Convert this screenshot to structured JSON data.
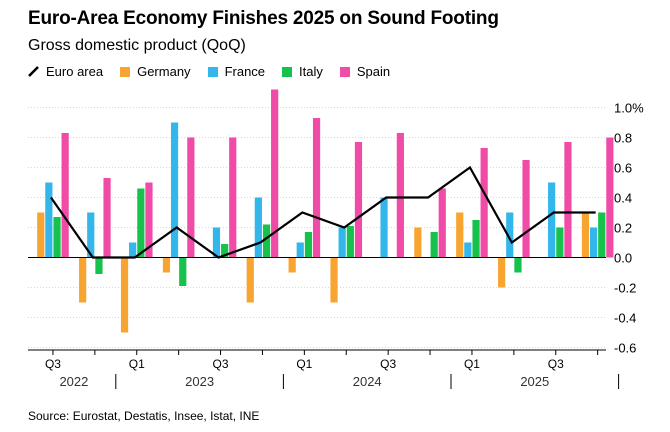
{
  "header": {
    "title": "Euro-Area Economy Finishes 2025 on Sound Footing",
    "subtitle": "Gross domestic product (QoQ)"
  },
  "source": "Source: Eurostat, Destatis, Insee, Istat, INE",
  "colors": {
    "euro_area": "#000000",
    "germany": "#f7a430",
    "france": "#33b6ea",
    "italy": "#16c14c",
    "spain": "#f04ba6"
  },
  "chart_data": {
    "type": "bar",
    "title": "Euro-Area Economy Finishes 2025 on Sound Footing",
    "subtitle": "Gross domestic product (QoQ)",
    "ylim": [
      -0.7,
      1.1
    ],
    "y_ticks": [
      1.0,
      0.8,
      0.6,
      0.4,
      0.2,
      0.0,
      -0.2,
      -0.4,
      -0.6
    ],
    "y_tick_labels": [
      "1.0%",
      "0.8",
      "0.6",
      "0.4",
      "0.2",
      "0.0",
      "-0.2",
      "-0.4",
      "-0.6"
    ],
    "categories": [
      "2022 Q3",
      "2022 Q4",
      "2023 Q1",
      "2023 Q2",
      "2023 Q3",
      "2023 Q4",
      "2024 Q1",
      "2024 Q2",
      "2024 Q3",
      "2024 Q4",
      "2025 Q1",
      "2025 Q2",
      "2025 Q3",
      "2025 Q4"
    ],
    "quarter_labels": [
      "Q3",
      "",
      "Q1",
      "",
      "Q3",
      "",
      "Q1",
      "",
      "Q3",
      "",
      "Q1",
      "",
      "Q3",
      ""
    ],
    "year_labels": [
      {
        "label": "2022",
        "start": 0,
        "end": 1
      },
      {
        "label": "2023",
        "start": 2,
        "end": 5
      },
      {
        "label": "2024",
        "start": 6,
        "end": 9
      },
      {
        "label": "2025",
        "start": 10,
        "end": 13
      }
    ],
    "series": [
      {
        "name": "Germany",
        "type": "bar",
        "values": [
          0.3,
          -0.3,
          -0.5,
          -0.1,
          0.0,
          -0.3,
          -0.1,
          -0.3,
          0.0,
          0.2,
          0.3,
          -0.2,
          0.0,
          0.3
        ]
      },
      {
        "name": "France",
        "type": "bar",
        "values": [
          0.5,
          0.3,
          0.1,
          0.9,
          0.2,
          0.4,
          0.1,
          0.2,
          0.4,
          0.0,
          0.1,
          0.3,
          0.5,
          0.2
        ]
      },
      {
        "name": "Italy",
        "type": "bar",
        "values": [
          0.27,
          -0.11,
          0.46,
          -0.19,
          0.09,
          0.22,
          0.17,
          0.21,
          0.0,
          0.17,
          0.25,
          -0.1,
          0.2,
          0.3
        ]
      },
      {
        "name": "Spain",
        "type": "bar",
        "values": [
          0.83,
          0.53,
          0.5,
          0.8,
          0.8,
          1.12,
          0.93,
          0.77,
          0.83,
          0.46,
          0.73,
          0.65,
          0.77,
          0.8
        ]
      },
      {
        "name": "Euro area",
        "type": "line",
        "values": [
          0.4,
          0.0,
          0.0,
          0.2,
          0.0,
          0.1,
          0.3,
          0.2,
          0.4,
          0.4,
          0.6,
          0.1,
          0.3,
          0.3
        ]
      }
    ],
    "legend": [
      "Euro area",
      "Germany",
      "France",
      "Italy",
      "Spain"
    ],
    "legend_position": "top-left"
  }
}
